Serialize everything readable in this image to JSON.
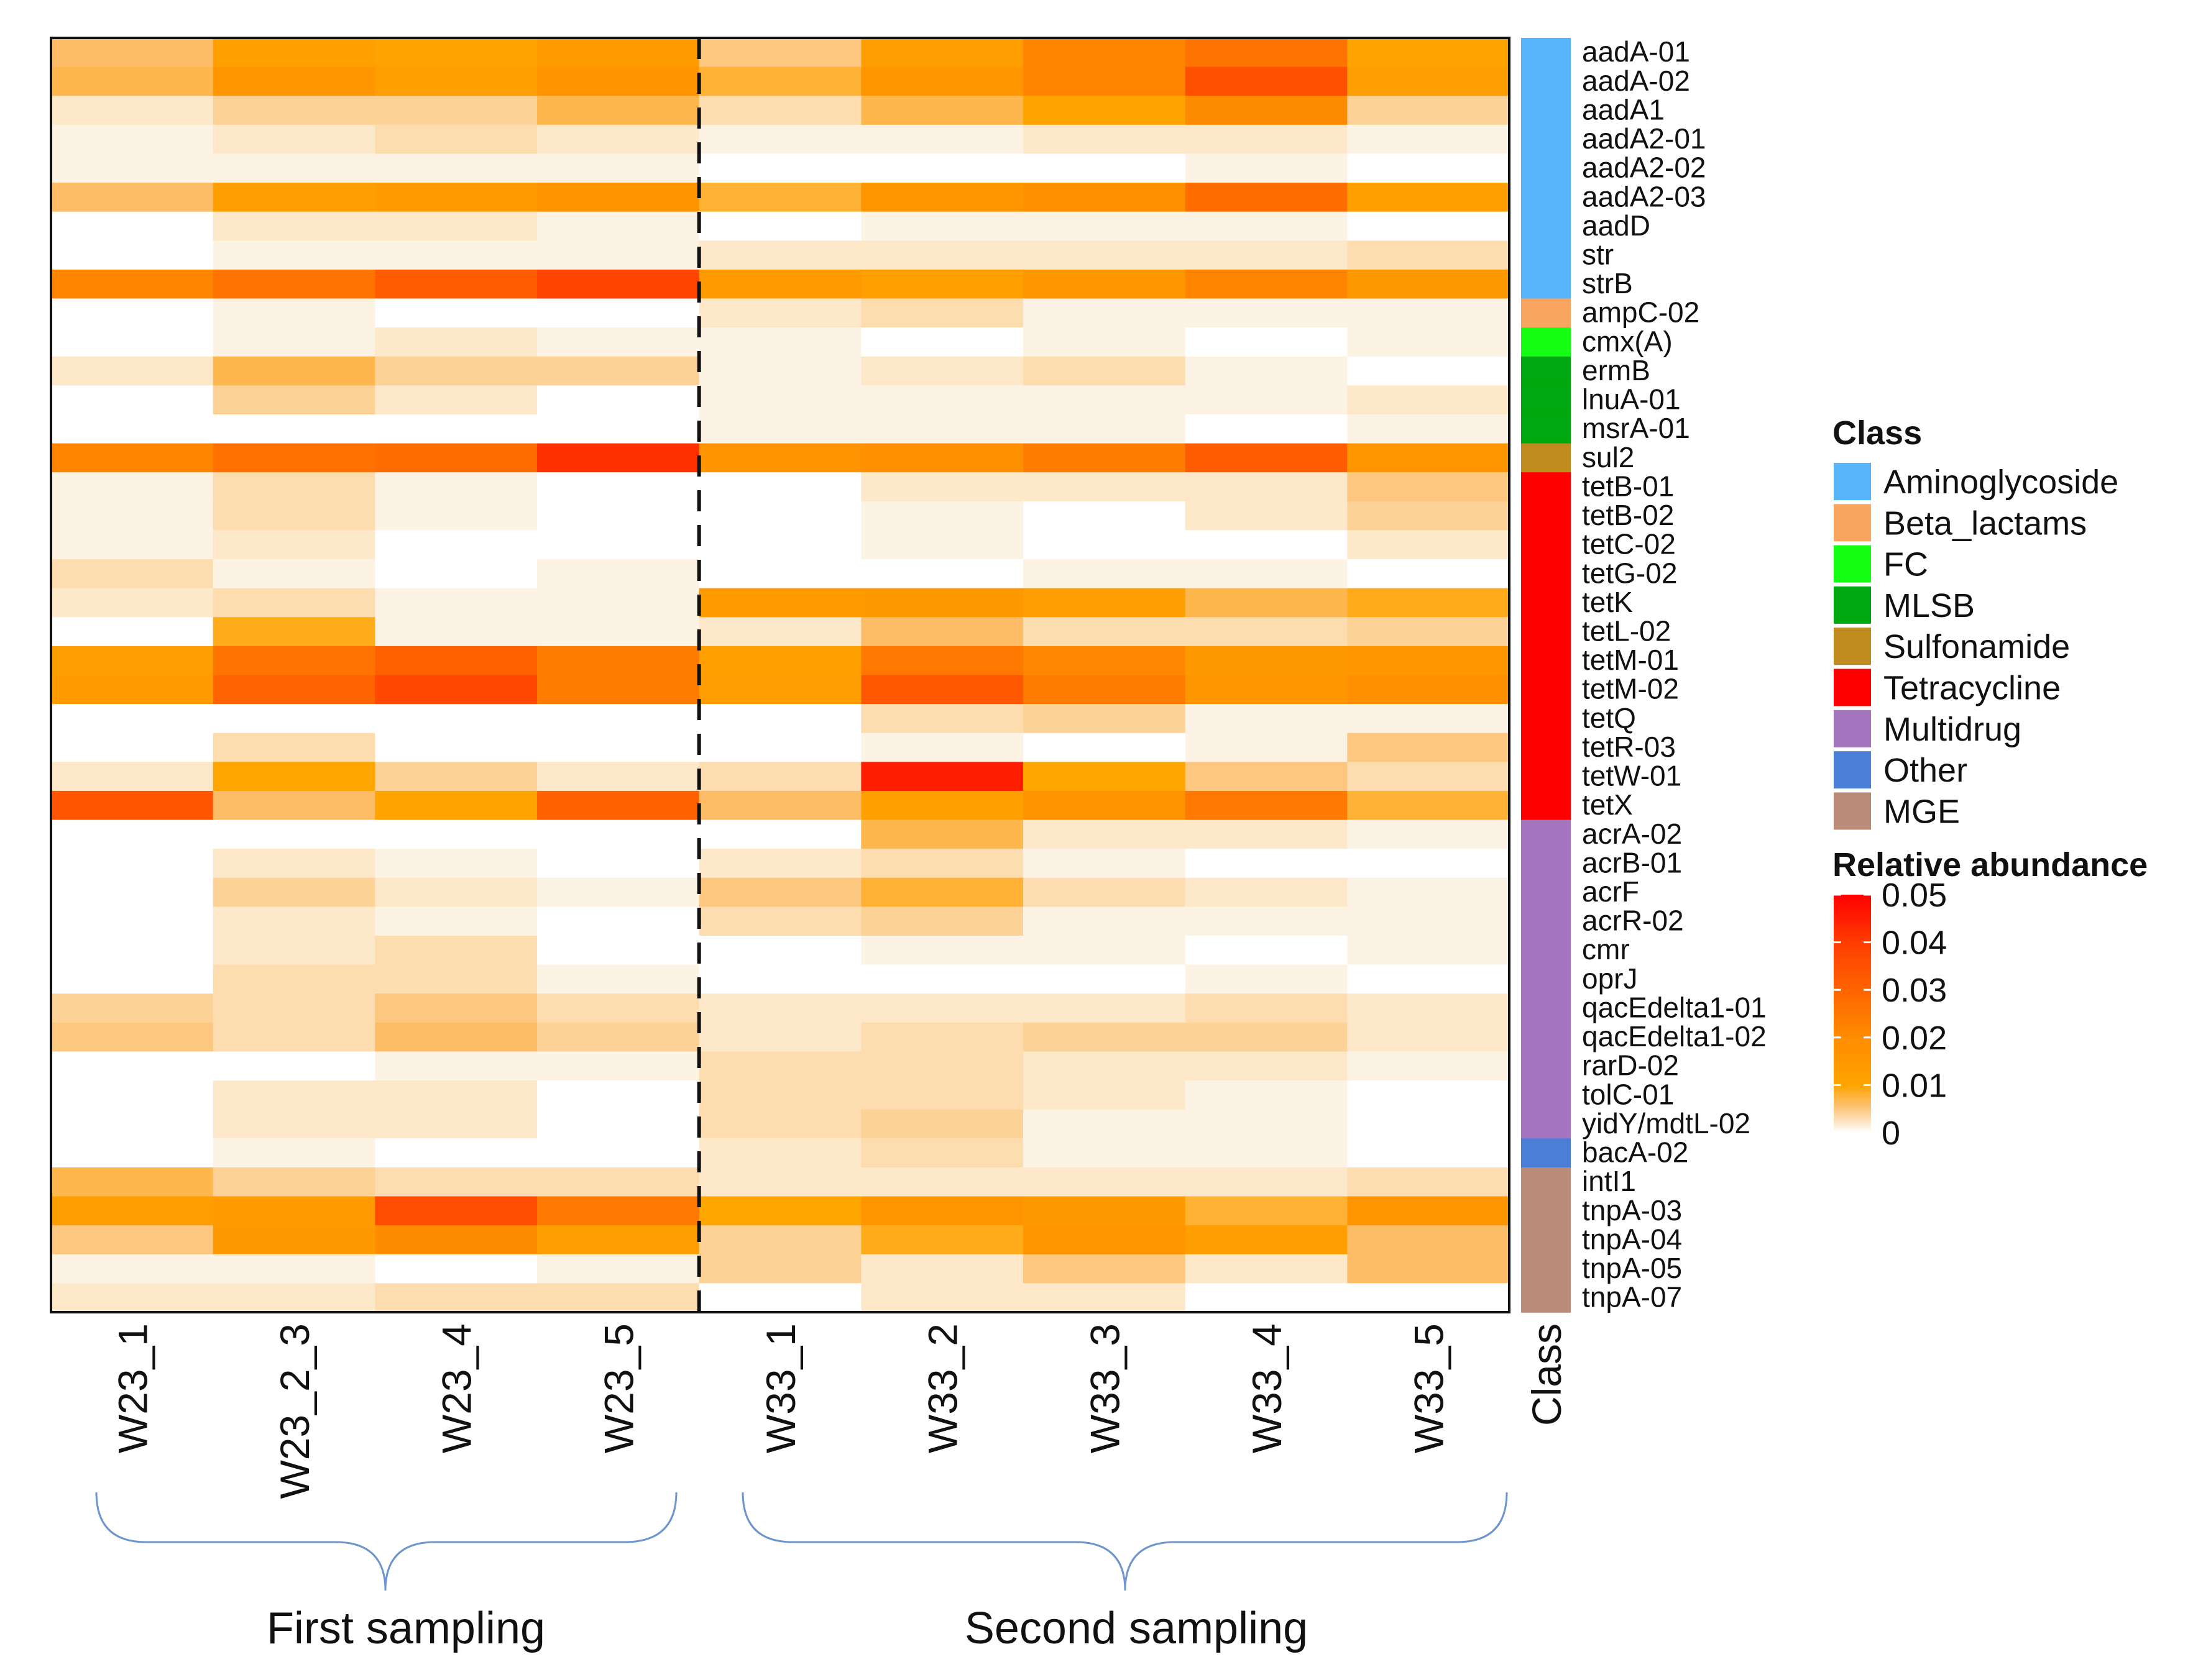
{
  "chart_data": {
    "type": "heatmap",
    "title": "",
    "columns": [
      "W23_1",
      "W23_2_3",
      "W23_4",
      "W23_5",
      "W33_1",
      "W33_2",
      "W33_3",
      "W33_4",
      "W33_5"
    ],
    "class_column_label": "Class",
    "groups": [
      {
        "label": "First sampling",
        "columns": [
          "W23_1",
          "W23_2_3",
          "W23_4",
          "W23_5"
        ]
      },
      {
        "label": "Second sampling",
        "columns": [
          "W33_1",
          "W33_2",
          "W33_3",
          "W33_4",
          "W33_5"
        ]
      }
    ],
    "rows": [
      {
        "gene": "aadA-01",
        "class": "Aminoglycoside",
        "values": [
          0.006,
          0.012,
          0.011,
          0.014,
          0.005,
          0.013,
          0.022,
          0.026,
          0.011
        ]
      },
      {
        "gene": "aadA-02",
        "class": "Aminoglycoside",
        "values": [
          0.007,
          0.016,
          0.012,
          0.017,
          0.008,
          0.016,
          0.022,
          0.035,
          0.013
        ]
      },
      {
        "gene": "aadA1",
        "class": "Aminoglycoside",
        "values": [
          0.002,
          0.004,
          0.004,
          0.007,
          0.003,
          0.007,
          0.011,
          0.02,
          0.004
        ]
      },
      {
        "gene": "aadA2-01",
        "class": "Aminoglycoside",
        "values": [
          0.001,
          0.002,
          0.003,
          0.002,
          0.001,
          0.001,
          0.002,
          0.002,
          0.001
        ]
      },
      {
        "gene": "aadA2-02",
        "class": "Aminoglycoside",
        "values": [
          0.001,
          0.001,
          0.001,
          0.001,
          0,
          0,
          0,
          0.001,
          0
        ]
      },
      {
        "gene": "aadA2-03",
        "class": "Aminoglycoside",
        "values": [
          0.006,
          0.013,
          0.014,
          0.017,
          0.008,
          0.016,
          0.018,
          0.028,
          0.012
        ]
      },
      {
        "gene": "aadD",
        "class": "Aminoglycoside",
        "values": [
          0,
          0.002,
          0.002,
          0.001,
          0,
          0.001,
          0.001,
          0.001,
          0
        ]
      },
      {
        "gene": "str",
        "class": "Aminoglycoside",
        "values": [
          0,
          0.001,
          0.001,
          0.001,
          0.002,
          0.002,
          0.002,
          0.002,
          0.003
        ]
      },
      {
        "gene": "strB",
        "class": "Aminoglycoside",
        "values": [
          0.022,
          0.026,
          0.032,
          0.038,
          0.014,
          0.012,
          0.016,
          0.022,
          0.015
        ]
      },
      {
        "gene": "ampC-02",
        "class": "Beta_lactams",
        "values": [
          0,
          0.001,
          0,
          0,
          0.002,
          0.003,
          0.001,
          0.001,
          0.001
        ]
      },
      {
        "gene": "cmx(A)",
        "class": "FC",
        "values": [
          0,
          0.001,
          0.002,
          0.001,
          0.001,
          0,
          0.001,
          0,
          0.001
        ]
      },
      {
        "gene": "ermB",
        "class": "MLSB",
        "values": [
          0.002,
          0.007,
          0.004,
          0.004,
          0.001,
          0.002,
          0.003,
          0.001,
          0
        ]
      },
      {
        "gene": "lnuA-01",
        "class": "MLSB",
        "values": [
          0,
          0.004,
          0.002,
          0,
          0.001,
          0.001,
          0.001,
          0.001,
          0.002
        ]
      },
      {
        "gene": "msrA-01",
        "class": "MLSB",
        "values": [
          0,
          0,
          0,
          0,
          0.001,
          0.001,
          0.001,
          0,
          0.001
        ]
      },
      {
        "gene": "sul2",
        "class": "Sulfonamide",
        "values": [
          0.022,
          0.027,
          0.028,
          0.042,
          0.017,
          0.018,
          0.024,
          0.032,
          0.016
        ]
      },
      {
        "gene": "tetB-01",
        "class": "Tetracycline",
        "values": [
          0.001,
          0.003,
          0.001,
          0,
          0,
          0.002,
          0.002,
          0.002,
          0.005
        ]
      },
      {
        "gene": "tetB-02",
        "class": "Tetracycline",
        "values": [
          0.001,
          0.003,
          0.001,
          0,
          0,
          0.001,
          0,
          0.002,
          0.004
        ]
      },
      {
        "gene": "tetC-02",
        "class": "Tetracycline",
        "values": [
          0.001,
          0.002,
          0,
          0,
          0,
          0.001,
          0,
          0,
          0.002
        ]
      },
      {
        "gene": "tetG-02",
        "class": "Tetracycline",
        "values": [
          0.003,
          0.001,
          0,
          0.001,
          0,
          0,
          0.001,
          0.001,
          0
        ]
      },
      {
        "gene": "tetK",
        "class": "Tetracycline",
        "values": [
          0.002,
          0.003,
          0.001,
          0.001,
          0.014,
          0.015,
          0.013,
          0.007,
          0.009
        ]
      },
      {
        "gene": "tetL-02",
        "class": "Tetracycline",
        "values": [
          0,
          0.009,
          0.001,
          0.001,
          0.002,
          0.006,
          0.003,
          0.003,
          0.004
        ]
      },
      {
        "gene": "tetM-01",
        "class": "Tetracycline",
        "values": [
          0.013,
          0.026,
          0.031,
          0.024,
          0.012,
          0.025,
          0.021,
          0.015,
          0.016
        ]
      },
      {
        "gene": "tetM-02",
        "class": "Tetracycline",
        "values": [
          0.014,
          0.03,
          0.037,
          0.024,
          0.013,
          0.033,
          0.024,
          0.016,
          0.019
        ]
      },
      {
        "gene": "tetQ",
        "class": "Tetracycline",
        "values": [
          0,
          0,
          0,
          0,
          0,
          0.003,
          0.004,
          0.001,
          0.001
        ]
      },
      {
        "gene": "tetR-03",
        "class": "Tetracycline",
        "values": [
          0,
          0.003,
          0,
          0,
          0,
          0.001,
          0,
          0.001,
          0.005
        ]
      },
      {
        "gene": "tetW-01",
        "class": "Tetracycline",
        "values": [
          0.002,
          0.01,
          0.004,
          0.002,
          0.003,
          0.045,
          0.01,
          0.005,
          0.003
        ]
      },
      {
        "gene": "tetX",
        "class": "Tetracycline",
        "values": [
          0.034,
          0.006,
          0.011,
          0.031,
          0.006,
          0.012,
          0.017,
          0.025,
          0.008
        ]
      },
      {
        "gene": "acrA-02",
        "class": "Multidrug",
        "values": [
          0,
          0,
          0,
          0,
          0,
          0.007,
          0.002,
          0.002,
          0.001
        ]
      },
      {
        "gene": "acrB-01",
        "class": "Multidrug",
        "values": [
          0,
          0.002,
          0.001,
          0,
          0.002,
          0.003,
          0.001,
          0,
          0
        ]
      },
      {
        "gene": "acrF",
        "class": "Multidrug",
        "values": [
          0,
          0.004,
          0.002,
          0.001,
          0.005,
          0.008,
          0.003,
          0.002,
          0.001
        ]
      },
      {
        "gene": "acrR-02",
        "class": "Multidrug",
        "values": [
          0,
          0.002,
          0.001,
          0,
          0.003,
          0.004,
          0.001,
          0.001,
          0.001
        ]
      },
      {
        "gene": "cmr",
        "class": "Multidrug",
        "values": [
          0,
          0.002,
          0.003,
          0,
          0,
          0.001,
          0.001,
          0,
          0.001
        ]
      },
      {
        "gene": "oprJ",
        "class": "Multidrug",
        "values": [
          0,
          0.003,
          0.003,
          0.001,
          0,
          0,
          0,
          0.001,
          0
        ]
      },
      {
        "gene": "qacEdelta1-01",
        "class": "Multidrug",
        "values": [
          0.004,
          0.003,
          0.005,
          0.003,
          0.002,
          0.002,
          0.002,
          0.003,
          0.002
        ]
      },
      {
        "gene": "qacEdelta1-02",
        "class": "Multidrug",
        "values": [
          0.005,
          0.003,
          0.006,
          0.004,
          0.002,
          0.003,
          0.004,
          0.004,
          0.002
        ]
      },
      {
        "gene": "rarD-02",
        "class": "Multidrug",
        "values": [
          0,
          0,
          0.001,
          0.001,
          0.003,
          0.003,
          0.002,
          0.002,
          0.001
        ]
      },
      {
        "gene": "tolC-01",
        "class": "Multidrug",
        "values": [
          0,
          0.002,
          0.002,
          0,
          0.003,
          0.003,
          0.002,
          0.001,
          0
        ]
      },
      {
        "gene": "yidY/mdtL-02",
        "class": "Multidrug",
        "values": [
          0,
          0.002,
          0.002,
          0,
          0.003,
          0.004,
          0.001,
          0.001,
          0
        ]
      },
      {
        "gene": "bacA-02",
        "class": "Other",
        "values": [
          0,
          0.001,
          0,
          0,
          0.002,
          0.003,
          0.001,
          0.001,
          0
        ]
      },
      {
        "gene": "intI1",
        "class": "MGE",
        "values": [
          0.007,
          0.004,
          0.003,
          0.003,
          0.002,
          0.002,
          0.002,
          0.002,
          0.003
        ]
      },
      {
        "gene": "tnpA-03",
        "class": "MGE",
        "values": [
          0.013,
          0.014,
          0.036,
          0.025,
          0.01,
          0.016,
          0.015,
          0.008,
          0.016
        ]
      },
      {
        "gene": "tnpA-04",
        "class": "MGE",
        "values": [
          0.005,
          0.015,
          0.02,
          0.013,
          0.004,
          0.009,
          0.016,
          0.013,
          0.006
        ]
      },
      {
        "gene": "tnpA-05",
        "class": "MGE",
        "values": [
          0.001,
          0.001,
          0,
          0.001,
          0.004,
          0.002,
          0.005,
          0.002,
          0.006
        ]
      },
      {
        "gene": "tnpA-07",
        "class": "MGE",
        "values": [
          0.002,
          0.002,
          0.003,
          0.003,
          0,
          0.002,
          0.002,
          0,
          0
        ]
      }
    ],
    "class_legend": {
      "title": "Class",
      "entries": [
        {
          "label": "Aminoglycoside",
          "color": "#56b4f9"
        },
        {
          "label": "Beta_lactams",
          "color": "#f9a560"
        },
        {
          "label": "FC",
          "color": "#14ff14"
        },
        {
          "label": "MLSB",
          "color": "#00a80f"
        },
        {
          "label": "Sulfonamide",
          "color": "#bf8a1e"
        },
        {
          "label": "Tetracycline",
          "color": "#ff0000"
        },
        {
          "label": "Multidrug",
          "color": "#a675c0"
        },
        {
          "label": "Other",
          "color": "#4a7fd6"
        },
        {
          "label": "MGE",
          "color": "#b98b78"
        }
      ]
    },
    "color_legend": {
      "title": "Relative abundance",
      "range": [
        0,
        0.05
      ],
      "ticks": [
        "0.05",
        "0.04",
        "0.03",
        "0.02",
        "0.01",
        "0"
      ],
      "tick_values": [
        0.05,
        0.04,
        0.03,
        0.02,
        0.01,
        0
      ]
    },
    "separator_after_column": "W23_5"
  }
}
